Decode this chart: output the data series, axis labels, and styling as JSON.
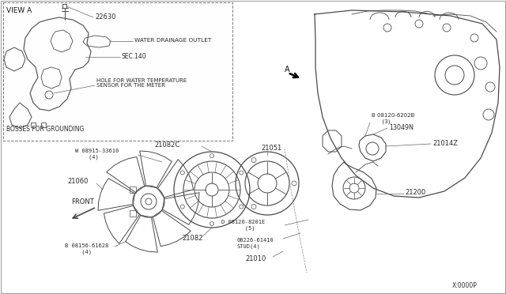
{
  "figsize": [
    6.4,
    3.72
  ],
  "dpi": 100,
  "bg_color": "#ffffff",
  "line_color": "#4a4a4a",
  "text_color": "#2a2a2a",
  "labels": {
    "view_a": "VIEW A",
    "label_22630": "22630",
    "water_drainage": "WATER DRAINAGE OUTLET",
    "sec140": "SEC.140",
    "hole_water": "HOLE FOR WATER TEMPERATURE\nSENSOR FOR THE METER",
    "bosses": "BOSSES FOR GROUNDING",
    "front": "FRONT",
    "label_08915": "W 08915-33610\n    (4)",
    "label_21082c": "21082C",
    "label_21060": "21060",
    "label_21082": "21082",
    "label_21051": "21051",
    "label_21010": "21010",
    "label_08156": "B 08156-61628\n     (4)",
    "label_08120_6202b": "B 08120-6202B\n      (3)",
    "label_13049n": "13049N",
    "label_08120_8201e": "D 08120-8201E\n       (5)",
    "label_08226": "08226-61410\nSTUD(4)",
    "label_21200": "21200",
    "label_21014z": "21014Z",
    "label_a": "A",
    "label_x0000p": "X:0000P"
  }
}
